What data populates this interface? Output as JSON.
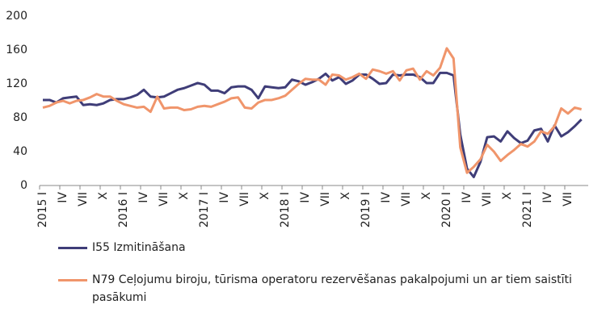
{
  "chart_data": {
    "type": "line",
    "categories": [
      "2015 I",
      null,
      null,
      "IV",
      null,
      null,
      "VII",
      null,
      null,
      "X",
      null,
      null,
      "2016 I",
      null,
      null,
      "IV",
      null,
      null,
      "VII",
      null,
      null,
      "X",
      null,
      null,
      "2017 I",
      null,
      null,
      "IV",
      null,
      null,
      "VII",
      null,
      null,
      "X",
      null,
      null,
      "2018 I",
      null,
      null,
      "IV",
      null,
      null,
      "VII",
      null,
      null,
      "X",
      null,
      null,
      "2019 I",
      null,
      null,
      "IV",
      null,
      null,
      "VII",
      null,
      null,
      "X",
      null,
      null,
      "2020 I",
      null,
      null,
      "IV",
      null,
      null,
      "VII",
      null,
      null,
      "X",
      null,
      null,
      "2021 I",
      null,
      null,
      "IV",
      null,
      null,
      "VII",
      null,
      null
    ],
    "series": [
      {
        "name": "I55 Izmitināšana",
        "color": "#3f3d78",
        "values": [
          101,
          101,
          98,
          103,
          104,
          105,
          95,
          96,
          95,
          97,
          101,
          102,
          102,
          104,
          107,
          113,
          105,
          104,
          105,
          109,
          113,
          115,
          118,
          121,
          119,
          112,
          112,
          109,
          116,
          117,
          117,
          113,
          103,
          117,
          116,
          115,
          116,
          125,
          123,
          119,
          122,
          126,
          132,
          124,
          128,
          120,
          124,
          131,
          131,
          126,
          120,
          121,
          131,
          130,
          131,
          131,
          128,
          121,
          121,
          133,
          133,
          130,
          60,
          20,
          10,
          28,
          57,
          58,
          52,
          64,
          56,
          50,
          53,
          65,
          67,
          52,
          71,
          58,
          63,
          70,
          78
        ]
      },
      {
        "name": "N79 Ceļojumu biroju, tūrisma operatoru rezervēšanas pakalpojumi un ar tiem saistīti pasākumi",
        "color": "#f0956b",
        "values": [
          92,
          94,
          98,
          100,
          97,
          100,
          101,
          104,
          108,
          105,
          105,
          100,
          96,
          94,
          92,
          93,
          87,
          105,
          91,
          92,
          92,
          89,
          90,
          93,
          94,
          93,
          96,
          99,
          103,
          104,
          92,
          91,
          98,
          101,
          101,
          103,
          106,
          113,
          120,
          126,
          125,
          125,
          119,
          131,
          130,
          125,
          128,
          132,
          126,
          137,
          135,
          132,
          135,
          124,
          136,
          138,
          125,
          135,
          130,
          139,
          162,
          150,
          45,
          15,
          22,
          31,
          48,
          40,
          29,
          36,
          42,
          49,
          46,
          52,
          64,
          61,
          70,
          91,
          85,
          92,
          90
        ]
      }
    ],
    "ylim": [
      0,
      200
    ],
    "yticks": [
      0,
      40,
      80,
      120,
      160,
      200
    ],
    "grid": false
  }
}
